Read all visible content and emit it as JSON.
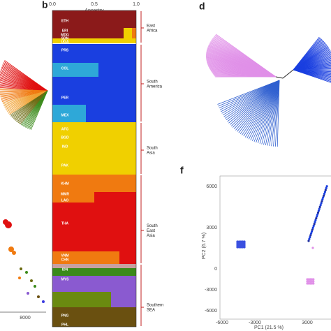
{
  "panels": {
    "b": "b",
    "d": "d",
    "f": "f"
  },
  "ancestry": {
    "title": "Ancestry",
    "ticks": [
      "0.0",
      "0.5",
      "1.0"
    ],
    "populations": [
      "ETH",
      "ERI",
      "MDG",
      "SDN",
      "UGA",
      "PRS",
      "COL",
      "PER",
      "MEX",
      "AFG",
      "BGD",
      "IND",
      "PAK",
      "KHM",
      "MMR",
      "LAO",
      "THA",
      "VNM",
      "CHN",
      "IDN",
      "MYS",
      "PNG",
      "PHL"
    ],
    "regions": [
      "East\nAfrica",
      "South\nAmerica",
      "South\nAsia",
      "South\nEast\nAsia",
      "Southern\nSEA"
    ]
  },
  "left_axis_tick": "8000",
  "pca": {
    "ylabel": "PC2 (6.7 %)",
    "xlabel": "PC1 (21.5 %)",
    "yticks": [
      "6000",
      "3000",
      "0",
      "-3000",
      "-6000"
    ],
    "xticks": [
      "-6000",
      "-3000",
      "3000"
    ]
  }
}
